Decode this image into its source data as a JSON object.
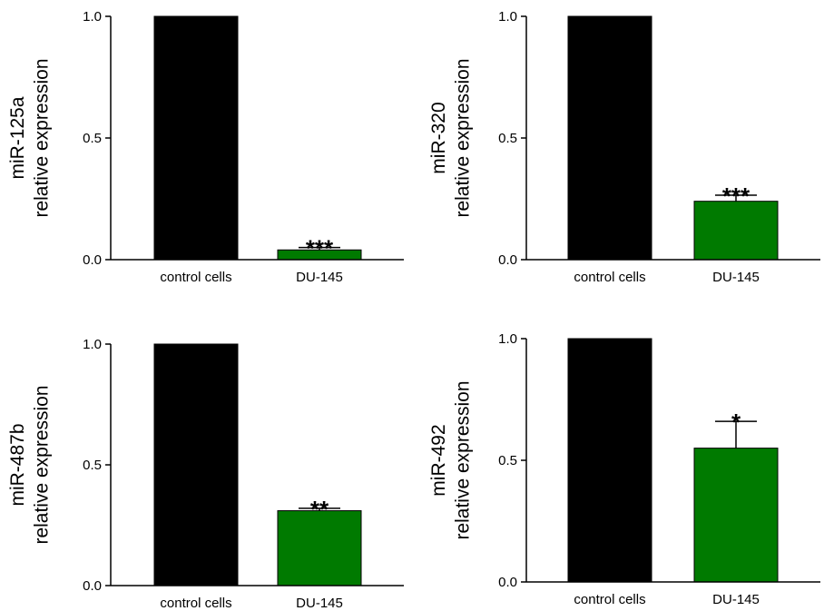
{
  "chart_data": [
    {
      "type": "bar",
      "ylabel": [
        "miR-125a",
        "relative expression"
      ],
      "categories": [
        "control cells",
        "DU-145"
      ],
      "values": [
        1.0,
        0.04
      ],
      "errors": [
        0,
        0.01
      ],
      "significance": [
        "",
        "***"
      ],
      "ylim": [
        0,
        1.0
      ],
      "yticks": [
        0.0,
        0.5,
        1.0
      ],
      "ytick_labels": [
        "0.0",
        "0.5",
        "1.0"
      ],
      "colors": [
        "#000000",
        "#007a00"
      ],
      "grid": false
    },
    {
      "type": "bar",
      "ylabel": [
        "miR-320",
        "relative expression"
      ],
      "categories": [
        "control cells",
        "DU-145"
      ],
      "values": [
        1.0,
        0.24
      ],
      "errors": [
        0,
        0.025
      ],
      "significance": [
        "",
        "***"
      ],
      "ylim": [
        0,
        1.0
      ],
      "yticks": [
        0.0,
        0.5,
        1.0
      ],
      "ytick_labels": [
        "0.0",
        "0.5",
        "1.0"
      ],
      "colors": [
        "#000000",
        "#007a00"
      ],
      "grid": false
    },
    {
      "type": "bar",
      "ylabel": [
        "miR-487b",
        "relative expression"
      ],
      "categories": [
        "control cells",
        "DU-145"
      ],
      "values": [
        1.0,
        0.31
      ],
      "errors": [
        0,
        0.01
      ],
      "significance": [
        "",
        "**"
      ],
      "ylim": [
        0,
        1.0
      ],
      "yticks": [
        0.0,
        0.5,
        1.0
      ],
      "ytick_labels": [
        "0.0",
        "0.5",
        "1.0"
      ],
      "colors": [
        "#000000",
        "#007a00"
      ],
      "grid": false
    },
    {
      "type": "bar",
      "ylabel": [
        "miR-492",
        "relative expression"
      ],
      "categories": [
        "control cells",
        "DU-145"
      ],
      "values": [
        1.0,
        0.55
      ],
      "errors": [
        0,
        0.11
      ],
      "significance": [
        "",
        "*"
      ],
      "ylim": [
        0,
        1.0
      ],
      "yticks": [
        0.0,
        0.5,
        1.0
      ],
      "ytick_labels": [
        "0.0",
        "0.5",
        "1.0"
      ],
      "colors": [
        "#000000",
        "#007a00"
      ],
      "grid": false
    }
  ]
}
